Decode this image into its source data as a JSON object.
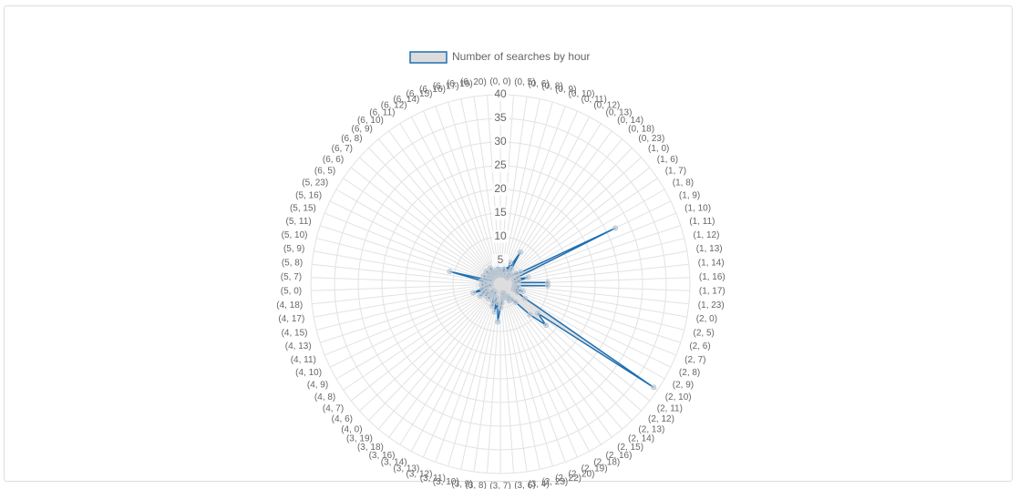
{
  "chart_data": {
    "type": "radar",
    "legend_position": "top",
    "categories": [
      "(0, 0)",
      "(0, 5)",
      "(0, 6)",
      "(0, 8)",
      "(0, 9)",
      "(0, 10)",
      "(0, 11)",
      "(0, 12)",
      "(0, 13)",
      "(0, 14)",
      "(0, 18)",
      "(0, 23)",
      "(1, 0)",
      "(1, 6)",
      "(1, 7)",
      "(1, 8)",
      "(1, 9)",
      "(1, 10)",
      "(1, 11)",
      "(1, 12)",
      "(1, 13)",
      "(1, 14)",
      "(1, 16)",
      "(1, 17)",
      "(1, 23)",
      "(2, 0)",
      "(2, 5)",
      "(2, 6)",
      "(2, 7)",
      "(2, 8)",
      "(2, 9)",
      "(2, 10)",
      "(2, 11)",
      "(2, 12)",
      "(2, 13)",
      "(2, 14)",
      "(2, 15)",
      "(2, 16)",
      "(2, 18)",
      "(2, 19)",
      "(2, 20)",
      "(2, 22)",
      "(2, 23)",
      "(3, 4)",
      "(3, 6)",
      "(3, 7)",
      "(3, 8)",
      "(3, 9)",
      "(3, 10)",
      "(3, 11)",
      "(3, 12)",
      "(3, 13)",
      "(3, 14)",
      "(3, 16)",
      "(3, 18)",
      "(3, 19)",
      "(4, 0)",
      "(4, 6)",
      "(4, 7)",
      "(4, 8)",
      "(4, 9)",
      "(4, 10)",
      "(4, 11)",
      "(4, 13)",
      "(4, 15)",
      "(4, 17)",
      "(4, 18)",
      "(5, 0)",
      "(5, 7)",
      "(5, 8)",
      "(5, 9)",
      "(5, 10)",
      "(5, 11)",
      "(5, 15)",
      "(5, 16)",
      "(5, 23)",
      "(6, 5)",
      "(6, 6)",
      "(6, 7)",
      "(6, 8)",
      "(6, 9)",
      "(6, 10)",
      "(6, 11)",
      "(6, 12)",
      "(6, 14)",
      "(6, 15)",
      "(6, 16)",
      "(6, 17)",
      "(6, 19)",
      "(6, 20)"
    ],
    "series": [
      {
        "name": "Number of searches by hour",
        "color": "#1f6fb2",
        "fill": "#dcdcdc",
        "values": [
          3,
          2,
          2,
          4,
          3,
          2,
          5,
          3,
          8,
          4,
          2,
          3,
          2,
          3,
          4,
          5,
          27,
          4,
          3,
          6,
          4,
          3,
          10,
          10,
          3,
          4,
          3,
          5,
          3,
          4,
          6,
          39,
          10,
          13,
          9,
          5,
          4,
          3,
          4,
          3,
          2,
          3,
          2,
          3,
          4,
          5,
          8,
          4,
          6,
          3,
          5,
          4,
          3,
          2,
          3,
          4,
          3,
          2,
          4,
          3,
          5,
          4,
          3,
          6,
          4,
          3,
          2,
          4,
          3,
          3,
          4,
          11,
          3,
          2,
          4,
          3,
          3,
          2,
          4,
          3,
          2,
          3,
          4,
          2,
          3,
          2,
          3,
          2,
          4,
          3
        ]
      }
    ],
    "ylim": [
      0,
      40
    ],
    "yticks": [
      0,
      5,
      10,
      15,
      20,
      25,
      30,
      35,
      40
    ],
    "grid": true
  }
}
